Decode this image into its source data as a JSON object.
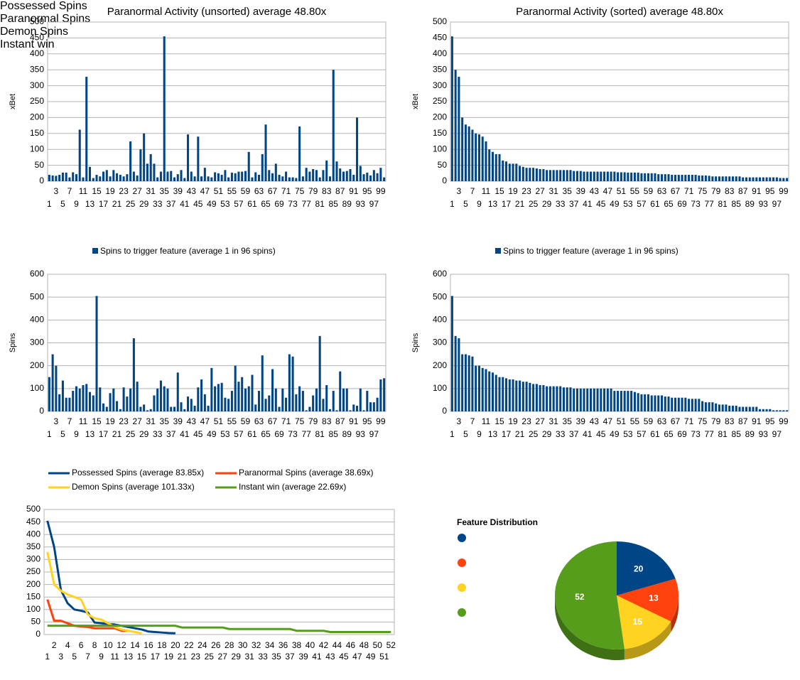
{
  "chart_data": [
    {
      "type": "bar",
      "title": "Paranormal Activity (unsorted) average 48.80x",
      "ylabel": "xBet",
      "color": "#004586",
      "grid": true,
      "ylim": [
        0,
        500
      ],
      "yticks": [
        0,
        50,
        100,
        150,
        200,
        250,
        300,
        350,
        400,
        450,
        500
      ],
      "categories": [
        1,
        null,
        3,
        null,
        5,
        null,
        7,
        null,
        9,
        null,
        11,
        null,
        13,
        null,
        15,
        null,
        17,
        null,
        19,
        null,
        21,
        null,
        23,
        null,
        25,
        null,
        27,
        null,
        29,
        null,
        31,
        null,
        33,
        null,
        35,
        null,
        37,
        null,
        39,
        null,
        41,
        null,
        43,
        null,
        45,
        null,
        47,
        null,
        49,
        null,
        51,
        null,
        53,
        null,
        55,
        null,
        57,
        null,
        59,
        null,
        61,
        null,
        63,
        null,
        65,
        null,
        67,
        null,
        69,
        null,
        71,
        null,
        73,
        null,
        75,
        null,
        77,
        null,
        79,
        null,
        81,
        null,
        83,
        null,
        85,
        null,
        87,
        null,
        89,
        null,
        91,
        null,
        93,
        null,
        95,
        null,
        97,
        null,
        99,
        null
      ],
      "values": [
        20,
        18,
        17,
        20,
        27,
        27,
        12,
        28,
        22,
        162,
        12,
        328,
        45,
        10,
        20,
        15,
        30,
        35,
        15,
        35,
        25,
        20,
        15,
        22,
        125,
        30,
        18,
        100,
        150,
        55,
        85,
        55,
        12,
        30,
        455,
        30,
        32,
        12,
        22,
        35,
        10,
        147,
        30,
        15,
        140,
        15,
        42,
        15,
        12,
        28,
        25,
        20,
        35,
        12,
        27,
        25,
        30,
        30,
        32,
        92,
        12,
        28,
        20,
        85,
        178,
        35,
        25,
        55,
        20,
        15,
        30,
        12,
        12,
        10,
        172,
        15,
        42,
        30,
        38,
        35,
        12,
        35,
        65,
        15,
        350,
        62,
        40,
        30,
        32,
        38,
        20,
        200,
        48,
        22,
        27,
        18,
        35,
        25,
        42,
        12
      ]
    },
    {
      "type": "bar",
      "title": "Paranormal Activity (sorted) average 48.80x",
      "ylabel": "xBet",
      "color": "#004586",
      "grid": true,
      "ylim": [
        0,
        500
      ],
      "yticks": [
        0,
        50,
        100,
        150,
        200,
        250,
        300,
        350,
        400,
        450,
        500
      ],
      "categories": [
        1,
        null,
        3,
        null,
        5,
        null,
        7,
        null,
        9,
        null,
        11,
        null,
        13,
        null,
        15,
        null,
        17,
        null,
        19,
        null,
        21,
        null,
        23,
        null,
        25,
        null,
        27,
        null,
        29,
        null,
        31,
        null,
        33,
        null,
        35,
        null,
        37,
        null,
        39,
        null,
        41,
        null,
        43,
        null,
        45,
        null,
        47,
        null,
        49,
        null,
        51,
        null,
        53,
        null,
        55,
        null,
        57,
        null,
        59,
        null,
        61,
        null,
        63,
        null,
        65,
        null,
        67,
        null,
        69,
        null,
        71,
        null,
        73,
        null,
        75,
        null,
        77,
        null,
        79,
        null,
        81,
        null,
        83,
        null,
        85,
        null,
        87,
        null,
        89,
        null,
        91,
        null,
        93,
        null,
        95,
        null,
        97,
        null,
        99,
        null
      ],
      "values": [
        455,
        350,
        328,
        200,
        178,
        172,
        162,
        150,
        147,
        140,
        125,
        100,
        92,
        85,
        85,
        65,
        62,
        55,
        55,
        55,
        48,
        45,
        42,
        42,
        42,
        40,
        38,
        38,
        35,
        35,
        35,
        35,
        35,
        35,
        35,
        35,
        32,
        32,
        32,
        30,
        30,
        30,
        30,
        30,
        30,
        30,
        30,
        30,
        30,
        28,
        28,
        28,
        27,
        27,
        27,
        27,
        25,
        25,
        25,
        25,
        25,
        22,
        22,
        22,
        22,
        20,
        20,
        20,
        20,
        20,
        20,
        20,
        20,
        18,
        18,
        18,
        17,
        15,
        15,
        15,
        15,
        15,
        15,
        15,
        15,
        15,
        12,
        12,
        12,
        12,
        12,
        12,
        12,
        12,
        12,
        12,
        12,
        10,
        10,
        10
      ]
    },
    {
      "type": "bar",
      "ylabel": "Spins",
      "grid": true,
      "ylim": [
        0,
        600
      ],
      "yticks": [
        0,
        100,
        200,
        300,
        400,
        500,
        600
      ],
      "categories": [
        1,
        null,
        3,
        null,
        5,
        null,
        7,
        null,
        9,
        null,
        11,
        null,
        13,
        null,
        15,
        null,
        17,
        null,
        19,
        null,
        21,
        null,
        23,
        null,
        25,
        null,
        27,
        null,
        29,
        null,
        31,
        null,
        33,
        null,
        35,
        null,
        37,
        null,
        39,
        null,
        41,
        null,
        43,
        null,
        45,
        null,
        47,
        null,
        49,
        null,
        51,
        null,
        53,
        null,
        55,
        null,
        57,
        null,
        59,
        null,
        61,
        null,
        63,
        null,
        65,
        null,
        67,
        null,
        69,
        null,
        71,
        null,
        73,
        null,
        75,
        null,
        77,
        null,
        79,
        null,
        81,
        null,
        83,
        null,
        85,
        null,
        87,
        null,
        89,
        null,
        91,
        null,
        93,
        null,
        95,
        null,
        97,
        null,
        99,
        null
      ],
      "series": [
        {
          "name": "Spins to trigger feature (average 1 in 96 spins)",
          "color": "#004586",
          "values": [
            150,
            250,
            200,
            75,
            135,
            60,
            60,
            90,
            110,
            100,
            115,
            120,
            85,
            70,
            505,
            105,
            35,
            20,
            80,
            100,
            45,
            10,
            105,
            65,
            100,
            320,
            130,
            20,
            30,
            5,
            10,
            70,
            100,
            135,
            110,
            100,
            20,
            20,
            170,
            40,
            10,
            65,
            55,
            25,
            105,
            140,
            75,
            25,
            190,
            110,
            120,
            125,
            60,
            55,
            90,
            200,
            130,
            150,
            100,
            110,
            160,
            30,
            90,
            245,
            55,
            70,
            185,
            100,
            20,
            100,
            60,
            250,
            240,
            75,
            110,
            90,
            5,
            20,
            70,
            100,
            330,
            55,
            115,
            10,
            90,
            5,
            175,
            100,
            100,
            5,
            30,
            25,
            100,
            5,
            90,
            40,
            40,
            60,
            140,
            145
          ]
        }
      ]
    },
    {
      "type": "bar",
      "ylabel": "Spins",
      "grid": true,
      "ylim": [
        0,
        600
      ],
      "yticks": [
        0,
        100,
        200,
        300,
        400,
        500,
        600
      ],
      "categories": [
        1,
        null,
        3,
        null,
        5,
        null,
        7,
        null,
        9,
        null,
        11,
        null,
        13,
        null,
        15,
        null,
        17,
        null,
        19,
        null,
        21,
        null,
        23,
        null,
        25,
        null,
        27,
        null,
        29,
        null,
        31,
        null,
        33,
        null,
        35,
        null,
        37,
        null,
        39,
        null,
        41,
        null,
        43,
        null,
        45,
        null,
        47,
        null,
        49,
        null,
        51,
        null,
        53,
        null,
        55,
        null,
        57,
        null,
        59,
        null,
        61,
        null,
        63,
        null,
        65,
        null,
        67,
        null,
        69,
        null,
        71,
        null,
        73,
        null,
        75,
        null,
        77,
        null,
        79,
        null,
        81,
        null,
        83,
        null,
        85,
        null,
        87,
        null,
        89,
        null,
        91,
        null,
        93,
        null,
        95,
        null,
        97,
        null,
        99,
        null
      ],
      "series": [
        {
          "name": "Spins to trigger feature (average 1 in 96 spins)",
          "color": "#004586",
          "values": [
            505,
            330,
            320,
            250,
            250,
            245,
            240,
            200,
            200,
            190,
            185,
            175,
            170,
            160,
            150,
            150,
            145,
            140,
            140,
            135,
            135,
            130,
            130,
            125,
            120,
            120,
            115,
            115,
            110,
            110,
            110,
            110,
            110,
            105,
            105,
            105,
            100,
            100,
            100,
            100,
            100,
            100,
            100,
            100,
            100,
            100,
            100,
            100,
            90,
            90,
            90,
            90,
            90,
            90,
            85,
            80,
            75,
            75,
            75,
            70,
            70,
            70,
            70,
            65,
            65,
            60,
            60,
            60,
            60,
            60,
            55,
            55,
            55,
            55,
            45,
            40,
            40,
            40,
            35,
            30,
            30,
            30,
            25,
            25,
            25,
            20,
            20,
            20,
            20,
            20,
            20,
            10,
            10,
            10,
            10,
            5,
            5,
            5,
            5,
            5
          ]
        }
      ]
    },
    {
      "type": "line",
      "grid": true,
      "ylim": [
        0,
        500
      ],
      "yticks": [
        0,
        50,
        100,
        150,
        200,
        250,
        300,
        350,
        400,
        450,
        500
      ],
      "categories": [
        1,
        2,
        3,
        4,
        5,
        6,
        7,
        8,
        9,
        10,
        11,
        12,
        13,
        14,
        15,
        16,
        17,
        18,
        19,
        20,
        21,
        22,
        23,
        24,
        25,
        26,
        27,
        28,
        29,
        30,
        31,
        32,
        33,
        34,
        35,
        36,
        37,
        38,
        39,
        40,
        41,
        42,
        43,
        44,
        45,
        46,
        47,
        48,
        49,
        50,
        51,
        52
      ],
      "series": [
        {
          "name": "Possessed Spins (average 83.85x)",
          "color": "#004586",
          "values": [
            455,
            350,
            178,
            125,
            100,
            95,
            88,
            48,
            45,
            42,
            40,
            35,
            30,
            25,
            20,
            12,
            10,
            8,
            6,
            5,
            null,
            null,
            null,
            null,
            null,
            null,
            null,
            null,
            null,
            null,
            null,
            null,
            null,
            null,
            null,
            null,
            null,
            null,
            null,
            null,
            null,
            null,
            null,
            null,
            null,
            null,
            null,
            null,
            null,
            null,
            null,
            null
          ]
        },
        {
          "name": "Paranormal Spins (average 38.69x)",
          "color": "#ff420e",
          "values": [
            140,
            55,
            55,
            45,
            35,
            32,
            30,
            25,
            25,
            25,
            25,
            15,
            15,
            null,
            null,
            null,
            null,
            null,
            null,
            null,
            null,
            null,
            null,
            null,
            null,
            null,
            null,
            null,
            null,
            null,
            null,
            null,
            null,
            null,
            null,
            null,
            null,
            null,
            null,
            null,
            null,
            null,
            null,
            null,
            null,
            null,
            null,
            null,
            null,
            null,
            null,
            null
          ]
        },
        {
          "name": "Demon Spins (average 101.33x)",
          "color": "#ffd320",
          "values": [
            330,
            200,
            175,
            160,
            150,
            140,
            80,
            65,
            60,
            45,
            30,
            20,
            15,
            10,
            5,
            null,
            null,
            null,
            null,
            null,
            null,
            null,
            null,
            null,
            null,
            null,
            null,
            null,
            null,
            null,
            null,
            null,
            null,
            null,
            null,
            null,
            null,
            null,
            null,
            null,
            null,
            null,
            null,
            null,
            null,
            null,
            null,
            null,
            null,
            null,
            null,
            null
          ]
        },
        {
          "name": "Instant win (average 22.69x)",
          "color": "#579d1c",
          "values": [
            35,
            35,
            35,
            35,
            35,
            35,
            35,
            35,
            35,
            35,
            35,
            35,
            35,
            35,
            35,
            35,
            35,
            35,
            35,
            35,
            28,
            28,
            28,
            28,
            28,
            28,
            28,
            22,
            22,
            22,
            22,
            22,
            22,
            22,
            22,
            22,
            22,
            15,
            15,
            15,
            15,
            15,
            10,
            10,
            10,
            10,
            10,
            10,
            10,
            10,
            10,
            10
          ]
        }
      ]
    },
    {
      "type": "pie",
      "title": "Feature Distribution",
      "categories": [
        "Possessed Spins",
        "Paranormal Spins",
        "Demon Spins",
        "Instant win"
      ],
      "values": [
        20,
        13,
        15,
        52
      ],
      "colors": [
        "#004586",
        "#ff420e",
        "#ffd320",
        "#579d1c"
      ]
    }
  ]
}
